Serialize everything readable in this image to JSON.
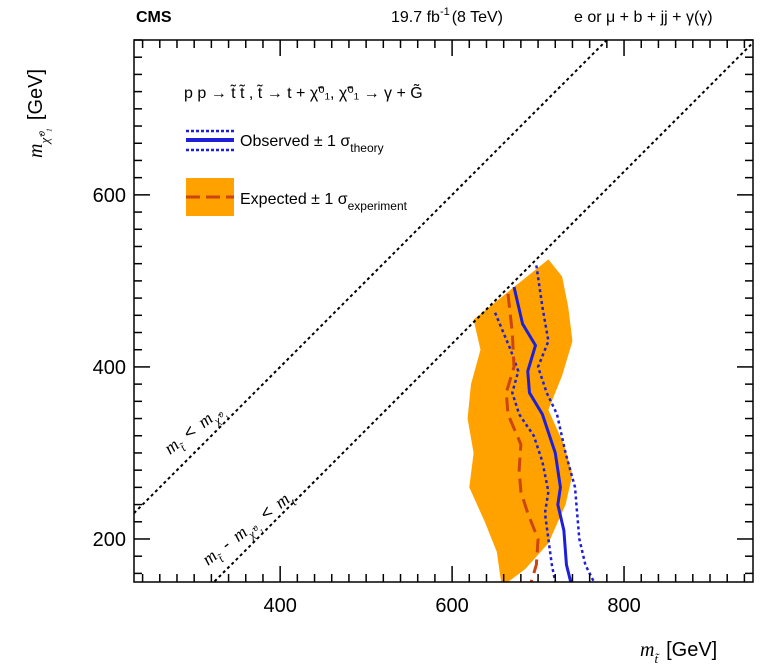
{
  "header": {
    "experiment": "CMS",
    "lumi_text": "19.7 fb",
    "lumi_exp": "-1",
    "energy_text": "(8 TeV)",
    "channel_text": "e or μ + b + jj + γ(γ)"
  },
  "legend": {
    "process": "p p → t̃ t̃ ,  t̃ → t +  χ̃⁰₁,   χ̃⁰₁ → γ + G̃",
    "observed_label": "Observed ± 1 σ",
    "observed_sub": "theory",
    "expected_label": "Expected ± 1 σ",
    "expected_sub": "experiment"
  },
  "annotations": {
    "diag1_prefix": "m",
    "diag1_sub": "t̃",
    "diag1_op": "<",
    "diag1_rhs": "m",
    "diag1_rhs_sub": "χ̃⁰₁",
    "diag2_prefix": "m",
    "diag2_sub": "t̃",
    "diag2_minus": "-",
    "diag2_mid": "m",
    "diag2_mid_sub": "χ̃⁰₁",
    "diag2_op": "<",
    "diag2_rhs": "m",
    "diag2_rhs_sub": "t"
  },
  "chart_data": {
    "type": "line",
    "xlabel": "m_t̃ [GeV]",
    "xlabel_m": "m",
    "xlabel_sub": "t̃",
    "xlabel_unit": "[GeV]",
    "ylabel": "m_χ̃⁰₁ [GeV]",
    "ylabel_m": "m",
    "ylabel_sub": "χ̃⁰₁",
    "ylabel_unit": "[GeV]",
    "xlim": [
      230,
      950
    ],
    "ylim": [
      150,
      780
    ],
    "xticks": [
      400,
      600,
      800
    ],
    "yticks": [
      200,
      400,
      600
    ],
    "grid": false,
    "legend_position": "top-left",
    "colors": {
      "observed": "#1f1fd8",
      "expected": "#cc4411",
      "band": "#ffa200",
      "diagonal": "#000000"
    },
    "diagonals": [
      {
        "name": "m_stop = m_neutralino",
        "offset": 0
      },
      {
        "name": "m_stop - m_neutralino = m_top",
        "offset": 173
      }
    ],
    "expected_band": {
      "upper": [
        [
          665,
          150
        ],
        [
          685,
          165
        ],
        [
          712,
          195
        ],
        [
          732,
          240
        ],
        [
          740,
          275
        ],
        [
          730,
          310
        ],
        [
          712,
          350
        ],
        [
          728,
          390
        ],
        [
          740,
          430
        ],
        [
          735,
          470
        ],
        [
          728,
          505
        ],
        [
          712,
          525
        ]
      ],
      "lower": [
        [
          625,
          455
        ],
        [
          633,
          420
        ],
        [
          622,
          380
        ],
        [
          618,
          340
        ],
        [
          625,
          300
        ],
        [
          620,
          260
        ],
        [
          638,
          220
        ],
        [
          652,
          185
        ],
        [
          657,
          150
        ]
      ]
    },
    "series": [
      {
        "name": "Observed",
        "style": "solid",
        "points": [
          [
            672,
            493
          ],
          [
            682,
            450
          ],
          [
            697,
            425
          ],
          [
            688,
            395
          ],
          [
            690,
            370
          ],
          [
            705,
            345
          ],
          [
            720,
            300
          ],
          [
            726,
            260
          ],
          [
            723,
            240
          ],
          [
            730,
            210
          ],
          [
            733,
            170
          ],
          [
            738,
            150
          ]
        ]
      },
      {
        "name": "Observed + 1σ theory",
        "style": "dotted",
        "points": [
          [
            698,
            518
          ],
          [
            705,
            470
          ],
          [
            712,
            430
          ],
          [
            700,
            400
          ],
          [
            710,
            370
          ],
          [
            722,
            345
          ],
          [
            732,
            300
          ],
          [
            743,
            260
          ],
          [
            745,
            235
          ],
          [
            748,
            200
          ],
          [
            755,
            170
          ],
          [
            765,
            150
          ]
        ]
      },
      {
        "name": "Observed - 1σ theory",
        "style": "dotted",
        "points": [
          [
            650,
            463
          ],
          [
            668,
            420
          ],
          [
            677,
            395
          ],
          [
            670,
            370
          ],
          [
            678,
            345
          ],
          [
            695,
            320
          ],
          [
            705,
            290
          ],
          [
            712,
            255
          ],
          [
            708,
            230
          ],
          [
            712,
            200
          ],
          [
            716,
            170
          ],
          [
            720,
            150
          ]
        ]
      },
      {
        "name": "Expected",
        "style": "dashed",
        "points": [
          [
            665,
            485
          ],
          [
            670,
            440
          ],
          [
            672,
            400
          ],
          [
            663,
            370
          ],
          [
            665,
            345
          ],
          [
            680,
            310
          ],
          [
            678,
            280
          ],
          [
            680,
            255
          ],
          [
            688,
            230
          ],
          [
            700,
            200
          ],
          [
            698,
            170
          ],
          [
            692,
            150
          ]
        ]
      }
    ]
  }
}
